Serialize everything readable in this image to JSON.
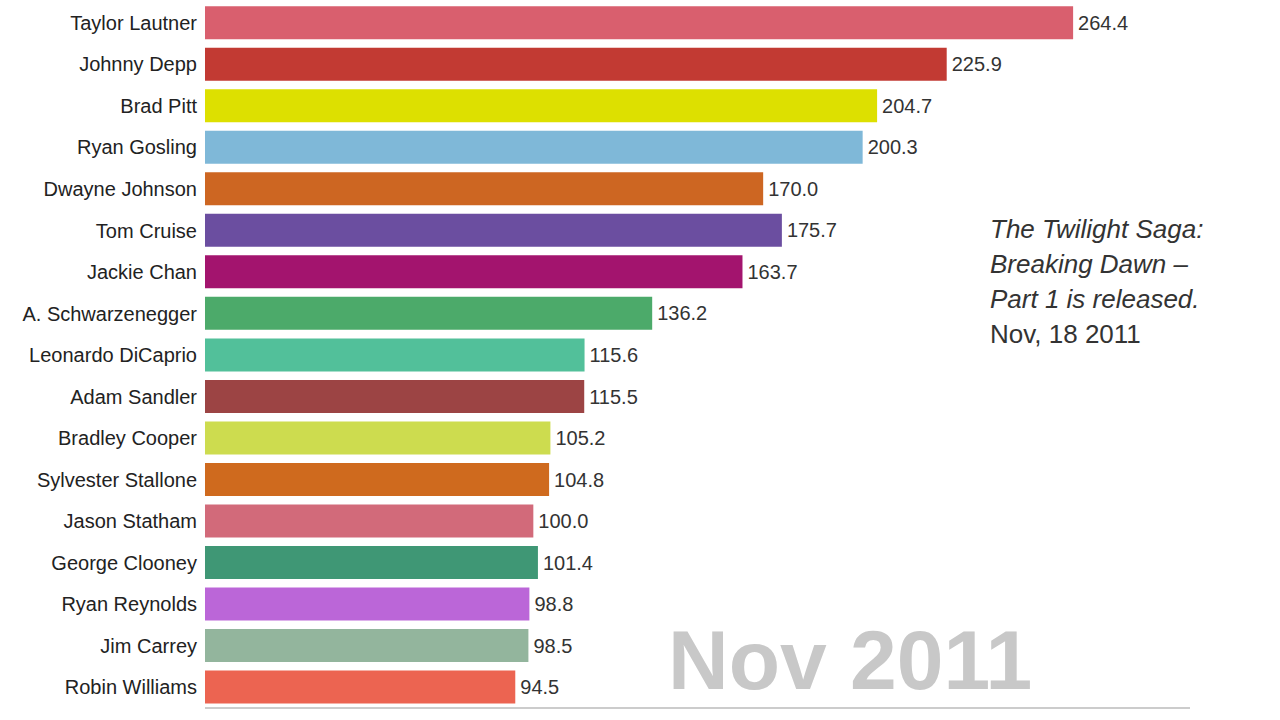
{
  "chart_data": {
    "type": "bar",
    "orientation": "horizontal",
    "categories": [
      "Taylor Lautner",
      "Johnny Depp",
      "Brad Pitt",
      "Ryan Gosling",
      "Dwayne Johnson",
      "Tom Cruise",
      "Jackie Chan",
      "A. Schwarzenegger",
      "Leonardo DiCaprio",
      "Adam Sandler",
      "Bradley Cooper",
      "Sylvester Stallone",
      "Jason Statham",
      "George Clooney",
      "Ryan Reynolds",
      "Jim Carrey",
      "Robin Williams"
    ],
    "values": [
      264.4,
      225.9,
      204.7,
      200.3,
      170.0,
      175.7,
      163.7,
      136.2,
      115.6,
      115.5,
      105.2,
      104.8,
      100.0,
      101.4,
      98.8,
      98.5,
      94.5
    ],
    "value_labels": [
      "264.4",
      "225.9",
      "204.7",
      "200.3",
      "170.0",
      "175.7",
      "163.7",
      "136.2",
      "115.6",
      "115.5",
      "105.2",
      "104.8",
      "100.0",
      "101.4",
      "98.8",
      "98.5",
      "94.5"
    ],
    "colors": [
      "#d95f6e",
      "#c23a33",
      "#dde000",
      "#7fb8d8",
      "#cd6622",
      "#6b4ea0",
      "#a3146e",
      "#4caa6a",
      "#52c09a",
      "#9c4444",
      "#cddc4f",
      "#cf6a1e",
      "#d26a7a",
      "#3f9775",
      "#bb66d8",
      "#93b59d",
      "#ec6451"
    ],
    "xlim": [
      0,
      300
    ],
    "data_labels": true,
    "tick_labels": "y",
    "grid": false,
    "annotation": {
      "lines": [
        "The Twilight Saga:",
        "Breaking Dawn –",
        "Part 1 is released."
      ],
      "date": "Nov, 18 2011"
    },
    "period_label": "Nov 2011"
  }
}
